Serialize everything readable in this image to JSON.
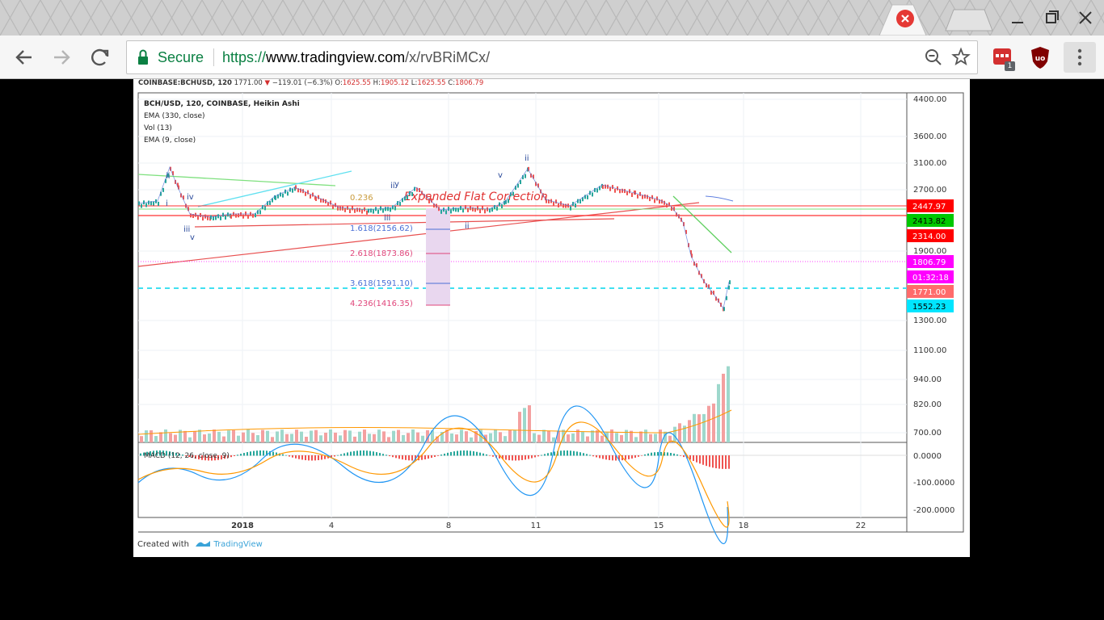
{
  "browser": {
    "security_label": "Secure",
    "url_scheme": "https://",
    "url_host": "www.tradingview.com",
    "url_path": "/x/rvBRiMCx/",
    "ext_badge_count": "1"
  },
  "chart": {
    "header": {
      "symbol": "COINBASE:BCHUSD, 120",
      "last": "1771.00",
      "change": "−119.01 (−6.3%)",
      "o_label": "O:",
      "o_value": "1625.55",
      "h_label": "H:",
      "h_value": "1905.12",
      "l_label": "L:",
      "l_value": "1625.55",
      "c_label": "C:",
      "c_value": "1806.79"
    },
    "legend": [
      "BCH/USD, 120, COINBASE, Heikin Ashi",
      "EMA (330, close)",
      "Vol (13)",
      "EMA (9, close)"
    ],
    "annotation": "Expanded Flat Correction",
    "fib_labels": [
      {
        "text": "1.618(2156.62)",
        "color": "#4a6fd6"
      },
      {
        "text": "2.618(1873.86)",
        "color": "#e0457a"
      },
      {
        "text": "3.618(1591.10)",
        "color": "#4a6fd6"
      },
      {
        "text": "4.236(1416.35)",
        "color": "#e0457a"
      },
      {
        "text": "0.236",
        "color": "#c99a3a"
      }
    ],
    "wave_labels": [
      "ii",
      "i",
      "iv",
      "iii",
      "v",
      "ii",
      "iii",
      "v",
      "ii",
      "y",
      "ii"
    ],
    "price_axis": [
      "4400.00",
      "3600.00",
      "3100.00",
      "2700.00",
      "1900.00",
      "1300.00",
      "1100.00",
      "940.00",
      "820.00",
      "700.00"
    ],
    "price_tags": [
      {
        "text": "2447.97",
        "bg": "#ff0000",
        "fg": "#ffffff"
      },
      {
        "text": "2413.82",
        "bg": "#00c800",
        "fg": "#000000"
      },
      {
        "text": "2314.00",
        "bg": "#ff0000",
        "fg": "#ffffff"
      },
      {
        "text": "1806.79",
        "bg": "#ff00ff",
        "fg": "#ffffff"
      },
      {
        "text": "01:32:18",
        "bg": "#ff00ff",
        "fg": "#ffffff"
      },
      {
        "text": "1771.00",
        "bg": "#ff6b6b",
        "fg": "#ffffff"
      },
      {
        "text": "1552.23",
        "bg": "#00e5ff",
        "fg": "#000000"
      }
    ],
    "macd_label": "MACD (12, 26, close, 9)",
    "macd_axis": [
      "0.0000",
      "-100.0000",
      "-200.0000"
    ],
    "time_axis": [
      "2018",
      "4",
      "8",
      "11",
      "15",
      "18",
      "22"
    ],
    "footer_created": "Created with",
    "footer_brand": "TradingView",
    "colors": {
      "up": "#26a69a",
      "down": "#ef5350",
      "macd": "#2196f3",
      "signal": "#ff9800"
    }
  }
}
